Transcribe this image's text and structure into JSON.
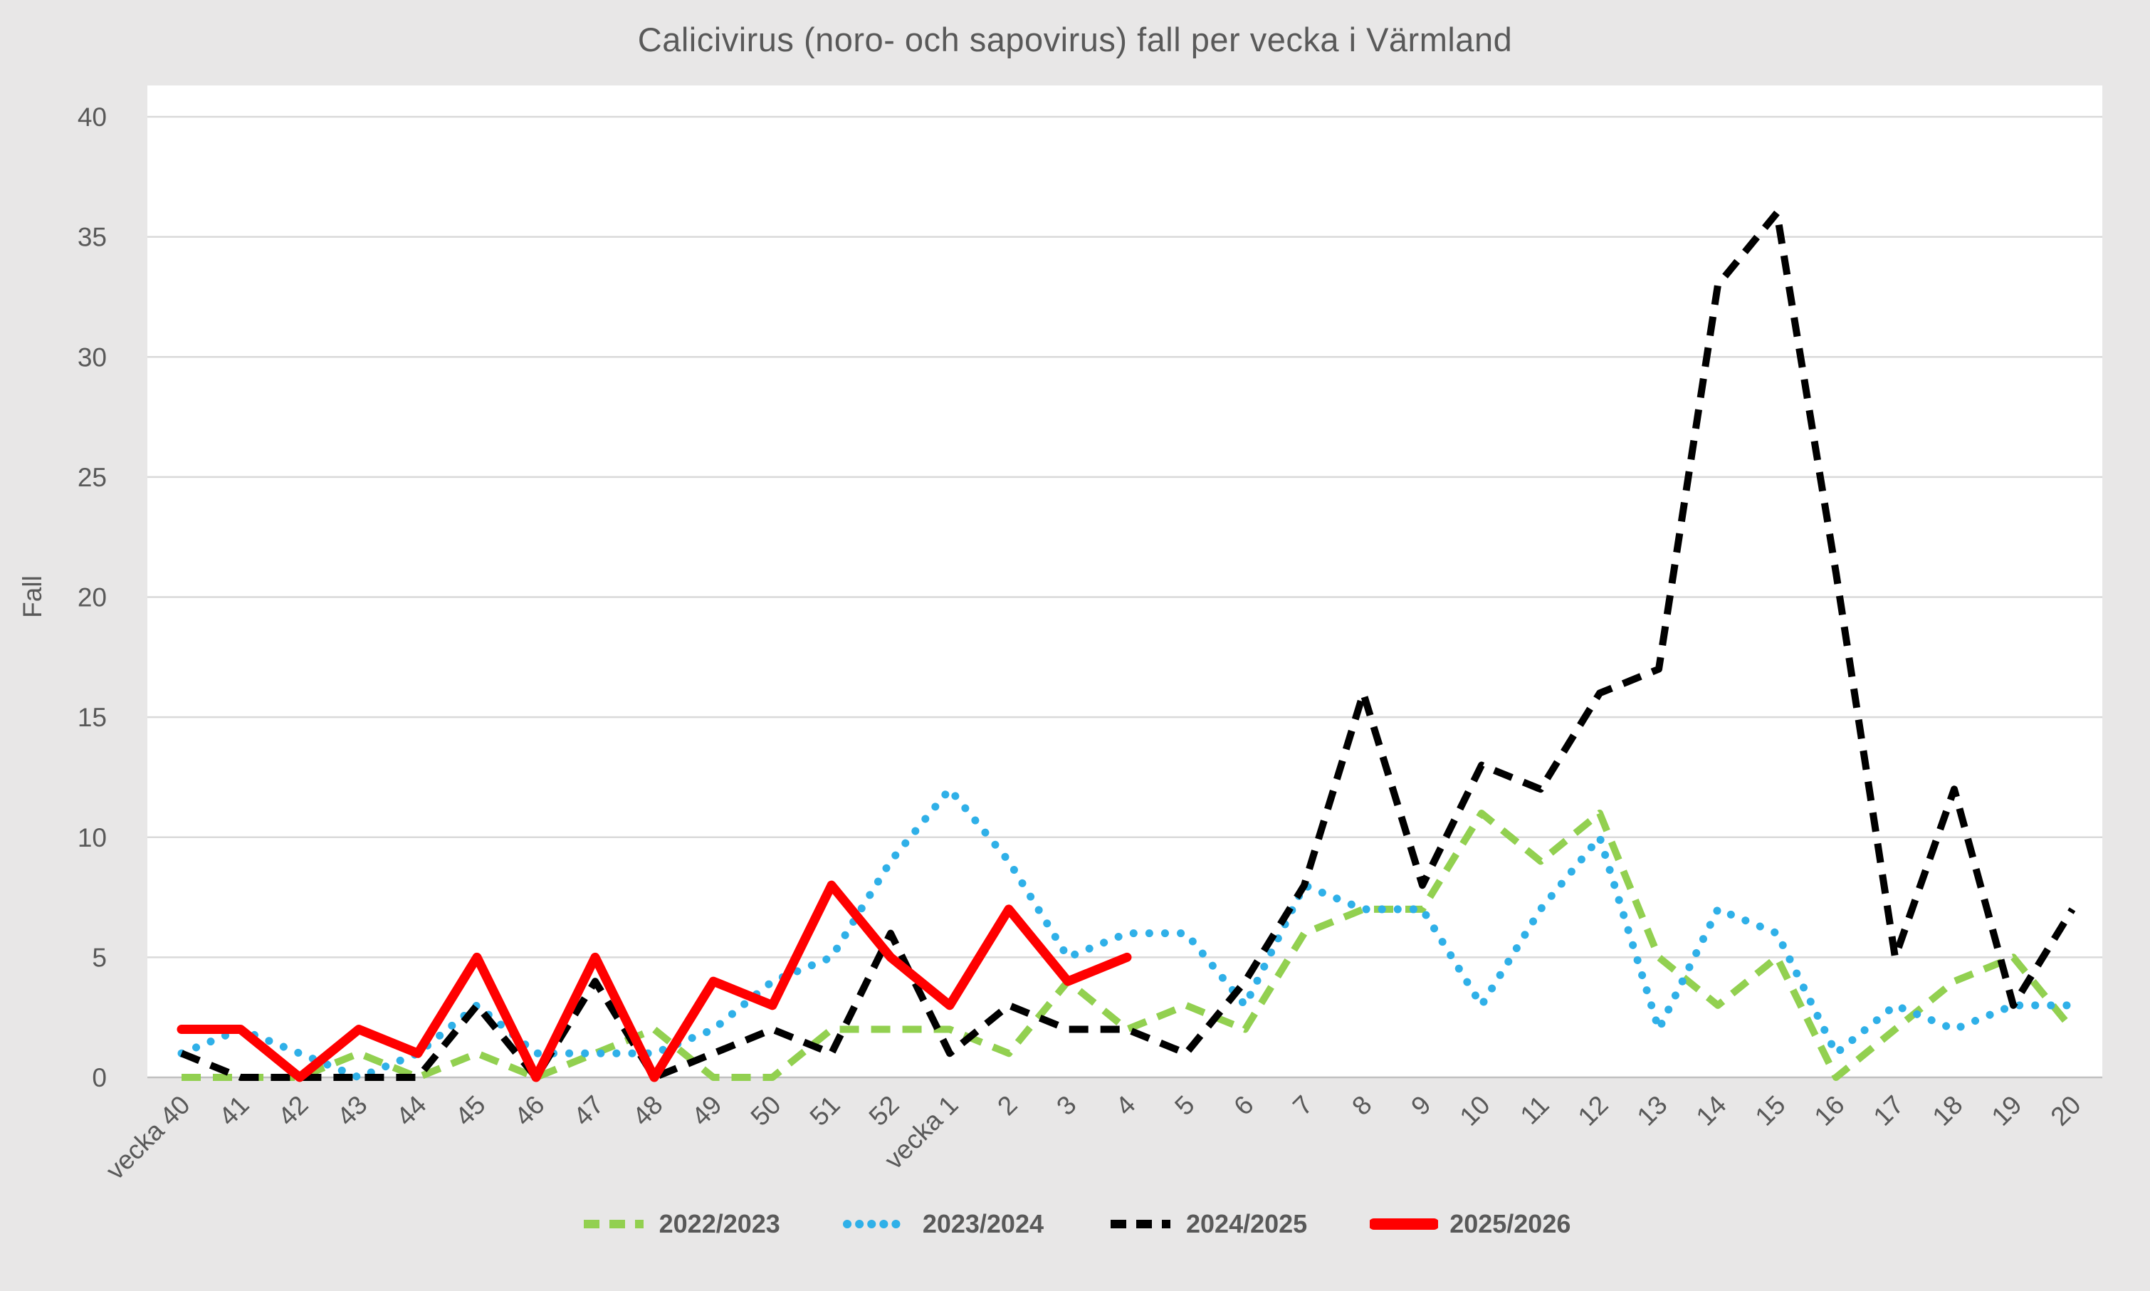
{
  "title": "Calicivirus (noro- och sapovirus) fall per vecka i Värmland",
  "colors": {
    "background": "#E8E7E7",
    "plot_background": "#FFFFFF",
    "gridline": "#D9D9D9",
    "baseline": "#C0C0C0",
    "text": "#595959"
  },
  "chart_data": {
    "type": "line",
    "title": "Calicivirus (noro- och sapovirus) fall per vecka i Värmland",
    "xlabel": "",
    "ylabel": "Fall",
    "ylim": [
      0,
      40
    ],
    "yticks": [
      0,
      5,
      10,
      15,
      20,
      25,
      30,
      35,
      40
    ],
    "grid": true,
    "legend_position": "bottom",
    "categories": [
      "vecka 40",
      "41",
      "42",
      "43",
      "44",
      "45",
      "46",
      "47",
      "48",
      "49",
      "50",
      "51",
      "52",
      "vecka 1",
      "2",
      "3",
      "4",
      "5",
      "6",
      "7",
      "8",
      "9",
      "10",
      "11",
      "12",
      "13",
      "14",
      "15",
      "16",
      "17",
      "18",
      "19",
      "20"
    ],
    "series": [
      {
        "name": "2022/2023",
        "color": "#92D050",
        "style": "dashed",
        "values": [
          0,
          0,
          0,
          1,
          0,
          1,
          0,
          1,
          2,
          0,
          0,
          2,
          2,
          2,
          1,
          4,
          2,
          3,
          2,
          6,
          7,
          7,
          11,
          9,
          11,
          5,
          3,
          5,
          0,
          2,
          4,
          5,
          2
        ]
      },
      {
        "name": "2023/2024",
        "color": "#2FB0E8",
        "style": "dotted",
        "values": [
          1,
          2,
          1,
          0,
          1,
          3,
          1,
          1,
          1,
          2,
          4,
          5,
          9,
          12,
          9,
          5,
          6,
          6,
          3,
          8,
          7,
          7,
          3,
          7,
          10,
          2,
          7,
          6,
          1,
          3,
          2,
          3,
          3
        ]
      },
      {
        "name": "2024/2025",
        "color": "#000000",
        "style": "dashed",
        "values": [
          1,
          0,
          0,
          0,
          0,
          3,
          0,
          4,
          0,
          1,
          2,
          1,
          6,
          1,
          3,
          2,
          2,
          1,
          4,
          8,
          16,
          8,
          13,
          12,
          16,
          17,
          33,
          36,
          21,
          5,
          12,
          3,
          7
        ]
      },
      {
        "name": "2025/2026",
        "color": "#FF0000",
        "style": "solid",
        "values": [
          2,
          2,
          0,
          2,
          1,
          5,
          0,
          5,
          0,
          4,
          3,
          8,
          5,
          3,
          7,
          4,
          5,
          null,
          null,
          null,
          null,
          null,
          null,
          null,
          null,
          null,
          null,
          null,
          null,
          null,
          null,
          null,
          null
        ]
      }
    ]
  }
}
